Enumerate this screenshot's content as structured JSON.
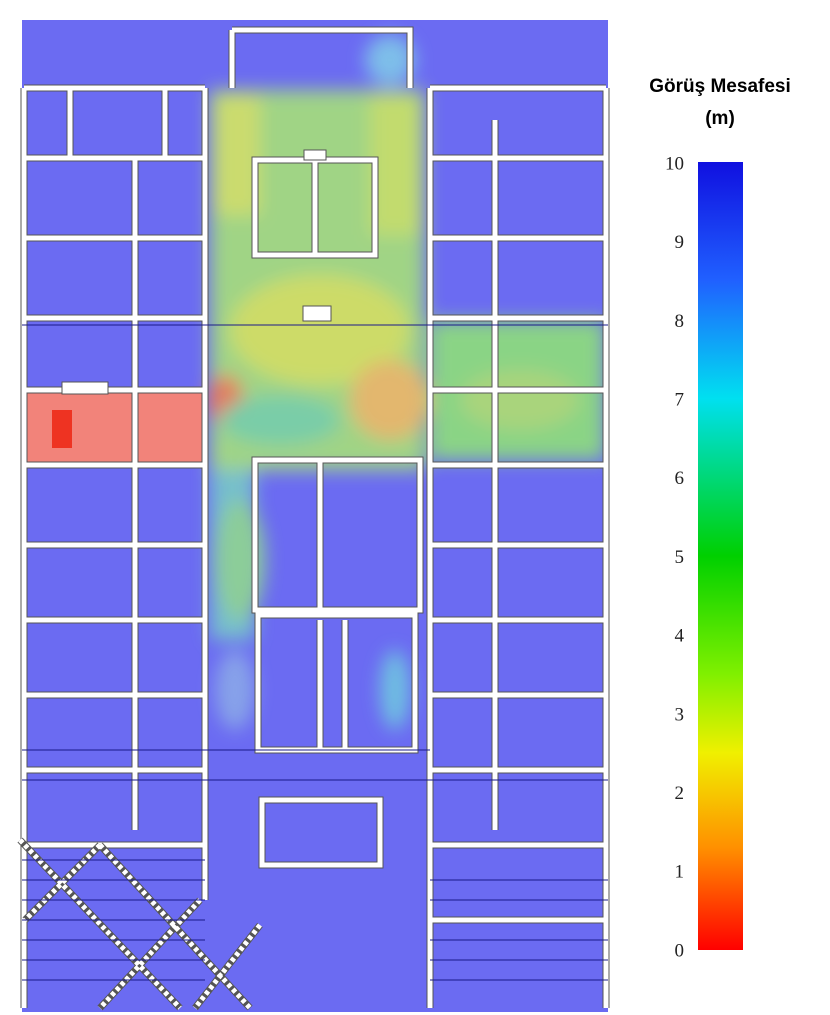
{
  "legend": {
    "title": "Görüş Mesafesi",
    "unit": "(m)",
    "range": [
      0,
      10
    ],
    "ticks": [
      0,
      1,
      2,
      3,
      4,
      5,
      6,
      7,
      8,
      9,
      10
    ]
  }
}
